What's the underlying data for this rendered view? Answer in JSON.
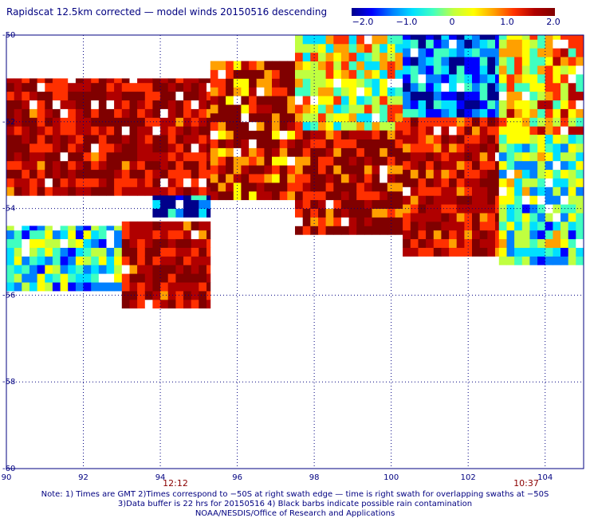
{
  "title": "Rapidscat 12.5km corrected — model winds 20150516 descending",
  "colorbar": {
    "ticks": [
      "−2.0",
      "−1.0",
      "0",
      "1.0",
      "2.0"
    ],
    "tick_values": [
      -2.0,
      -1.0,
      0,
      1.0,
      2.0
    ],
    "colors": [
      "#00008b",
      "#0000ff",
      "#0080ff",
      "#00e0ff",
      "#40ffc0",
      "#c0ff40",
      "#ffff00",
      "#ffa000",
      "#ff3000",
      "#b00000",
      "#800000"
    ]
  },
  "time_labels": [
    {
      "text": "12:12",
      "lon": 94.4
    },
    {
      "text": "10:37",
      "lon": 103.5
    }
  ],
  "notes": [
    "Note: 1) Times are GMT 2)Times correspond to −50S at right swath edge — time is right swath for overlapping swaths at −50S",
    "3)Data buffer is 22 hrs for 20150516 4) Black barbs indicate possible rain contamination",
    "NOAA/NESDIS/Office of Research and Applications"
  ],
  "chart_data": {
    "type": "heatmap",
    "title": "Rapidscat 12.5km corrected — model winds 20150516 descending",
    "xlabel": "",
    "ylabel": "",
    "xlim": [
      90,
      105
    ],
    "ylim": [
      -60,
      -50
    ],
    "x_ticks": [
      90,
      92,
      94,
      96,
      98,
      100,
      102,
      104
    ],
    "x_tick_labels": [
      "90",
      "92",
      "94",
      "96",
      "98",
      "100",
      "102",
      "104"
    ],
    "y_ticks": [
      -50,
      -52,
      -54,
      -56,
      -58,
      -60
    ],
    "y_tick_labels": [
      "-50",
      "-52",
      "-54",
      "-56",
      "-58",
      "-60"
    ],
    "grid": true,
    "value_range": [
      -2.0,
      2.0
    ],
    "regions": [
      {
        "lon": [
          90.0,
          95.3
        ],
        "lat": [
          -53.7,
          -51.0
        ],
        "value": 2.0
      },
      {
        "lon": [
          95.3,
          97.5
        ],
        "lat": [
          -53.8,
          -50.6
        ],
        "value": 1.6
      },
      {
        "lon": [
          97.5,
          100.3
        ],
        "lat": [
          -52.2,
          -50.0
        ],
        "value": 0.2
      },
      {
        "lon": [
          97.5,
          100.3
        ],
        "lat": [
          -54.6,
          -52.2
        ],
        "value": 1.8
      },
      {
        "lon": [
          100.3,
          102.8
        ],
        "lat": [
          -51.9,
          -50.0
        ],
        "value": -1.3
      },
      {
        "lon": [
          100.3,
          102.8
        ],
        "lat": [
          -55.1,
          -51.9
        ],
        "value": 1.9
      },
      {
        "lon": [
          102.8,
          105.0
        ],
        "lat": [
          -52.3,
          -50.0
        ],
        "value": 0.6
      },
      {
        "lon": [
          102.8,
          105.0
        ],
        "lat": [
          -55.3,
          -52.3
        ],
        "value": -0.4
      },
      {
        "lon": [
          90.0,
          93.0
        ],
        "lat": [
          -55.9,
          -54.4
        ],
        "value": -0.5
      },
      {
        "lon": [
          93.0,
          95.3
        ],
        "lat": [
          -56.3,
          -54.3
        ],
        "value": 2.0
      },
      {
        "lon": [
          93.8,
          95.3
        ],
        "lat": [
          -54.2,
          -53.7
        ],
        "value": -1.5
      }
    ]
  }
}
